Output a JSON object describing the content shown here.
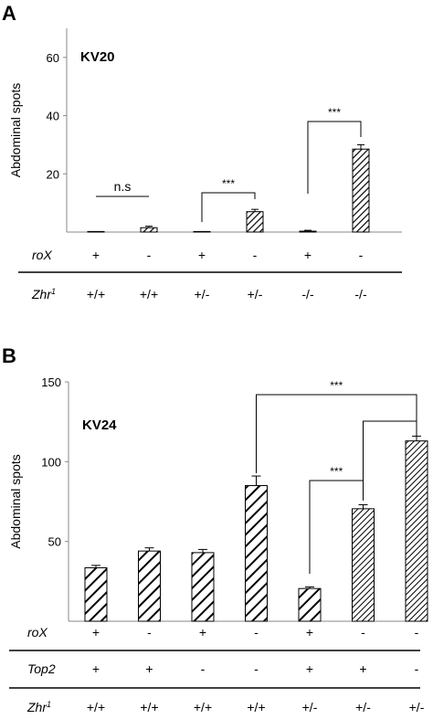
{
  "chart_data": [
    {
      "type": "bar",
      "panel": "A",
      "label": "KV20",
      "ylabel": "Abdominal spots",
      "ylim": [
        0,
        70
      ],
      "yticks": [
        20,
        40,
        60
      ],
      "values": [
        0,
        1.5,
        0,
        7,
        0.3,
        28.5
      ],
      "errors": [
        0,
        0.5,
        0,
        0.8,
        0.3,
        1.5
      ],
      "genotype_rows": [
        {
          "name": "roX",
          "values": [
            "+",
            "-",
            "+",
            "-",
            "+",
            "-"
          ]
        },
        {
          "name": "Zhr",
          "sup": "1",
          "values": [
            "+/+",
            "+/+",
            "+/-",
            "+/-",
            "-/-",
            "-/-"
          ]
        }
      ],
      "significance": [
        {
          "from": 0,
          "to": 1,
          "label": "n.s"
        },
        {
          "from": 2,
          "to": 3,
          "label": "***"
        },
        {
          "from": 4,
          "to": 5,
          "label": "***"
        }
      ]
    },
    {
      "type": "bar",
      "panel": "B",
      "label": "KV24",
      "ylabel": "Abdominal spots",
      "ylim": [
        0,
        150
      ],
      "yticks": [
        50,
        100,
        150
      ],
      "values": [
        33.5,
        44,
        43,
        85,
        20.5,
        70.5,
        113
      ],
      "errors": [
        1.5,
        2,
        2,
        6,
        1,
        2.5,
        3
      ],
      "genotype_rows": [
        {
          "name": "roX",
          "values": [
            "+",
            "-",
            "+",
            "-",
            "+",
            "-",
            "-"
          ]
        },
        {
          "name": "Top2",
          "values": [
            "+",
            "+",
            "-",
            "-",
            "+",
            "+",
            "-"
          ]
        },
        {
          "name": "Zhr",
          "sup": "1",
          "values": [
            "+/+",
            "+/+",
            "+/+",
            "+/+",
            "+/-",
            "+/-",
            "+/-"
          ]
        }
      ],
      "significance": [
        {
          "from": 3,
          "to": 6,
          "label": "***"
        },
        {
          "from": 4,
          "to": 5,
          "label": "***"
        },
        {
          "from": 5,
          "to": 6,
          "label": ""
        }
      ]
    }
  ]
}
